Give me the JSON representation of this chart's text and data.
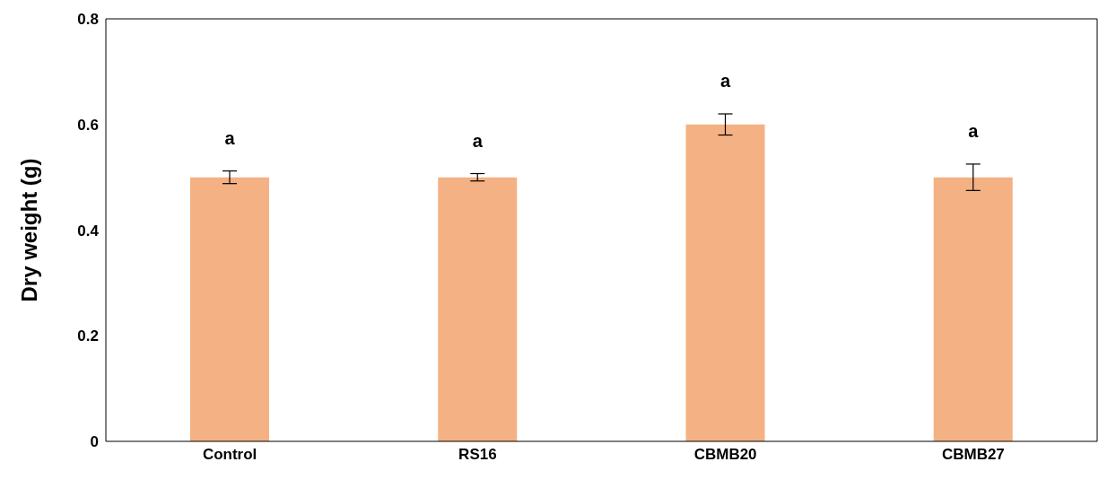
{
  "chart_data": {
    "type": "bar",
    "ylabel": "Dry weight (g)",
    "categories": [
      "Control",
      "RS16",
      "CBMB20",
      "CBMB27"
    ],
    "values": [
      0.5,
      0.5,
      0.6,
      0.5
    ],
    "errors": [
      0.012,
      0.007,
      0.02,
      0.025
    ],
    "color": "#f4b183",
    "ylim": [
      0,
      0.8
    ],
    "yticks": [
      0,
      0.2,
      0.4,
      0.6,
      0.8
    ],
    "grid": false,
    "legend": false,
    "annotations": [
      "a",
      "a",
      "a",
      "a"
    ]
  }
}
